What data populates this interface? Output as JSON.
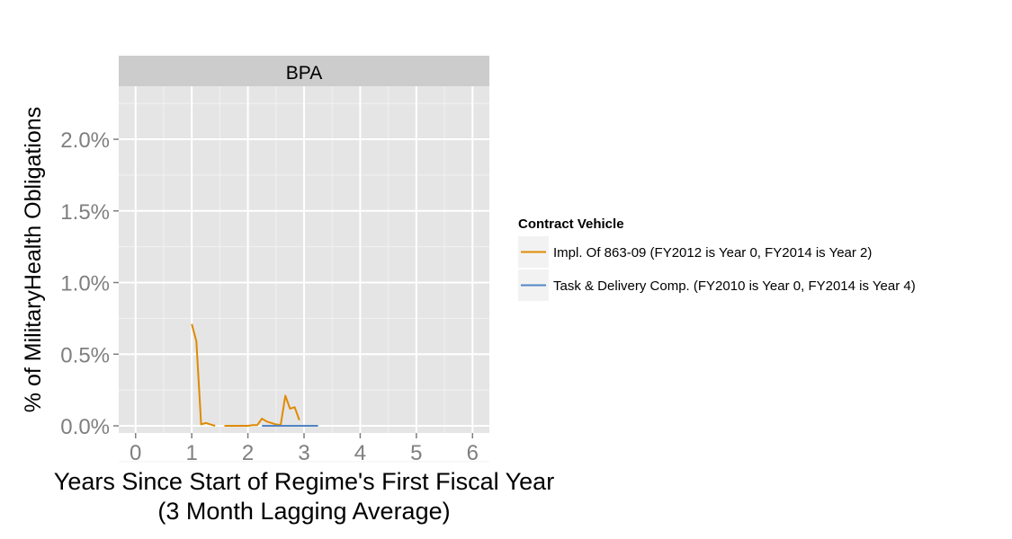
{
  "chart_data": {
    "type": "line",
    "facet_label": "BPA",
    "xlabel": "Years Since Start of Regime's First Fiscal Year",
    "xlabel_sub": "(3 Month Lagging Average)",
    "ylabel": "% of MilitaryHealth Obligations",
    "xlim": [
      -0.3,
      6.3
    ],
    "ylim": [
      -0.05,
      2.37
    ],
    "x_ticks": [
      0,
      1,
      2,
      3,
      4,
      5,
      6
    ],
    "x_tick_labels": [
      "0",
      "1",
      "2",
      "3",
      "4",
      "5",
      "6"
    ],
    "y_ticks": [
      0,
      0.5,
      1.0,
      1.5,
      2.0
    ],
    "y_tick_labels": [
      "0.0%",
      "0.5%",
      "1.0%",
      "1.5%",
      "2.0%"
    ],
    "grid": true,
    "legend": {
      "title": "Contract Vehicle",
      "position": "right"
    },
    "series": [
      {
        "name": "Impl. Of 863-09 (FY2012 is Year 0, FY2014 is Year 2)",
        "color": "#E08A00",
        "segments": [
          [
            [
              1.0,
              0.71
            ],
            [
              1.083,
              0.59
            ],
            [
              1.167,
              0.01
            ],
            [
              1.25,
              0.02
            ],
            [
              1.333,
              0.01
            ],
            [
              1.417,
              0.0
            ]
          ],
          [
            [
              1.583,
              0.0
            ],
            [
              1.667,
              0.0
            ],
            [
              1.75,
              0.0
            ],
            [
              1.833,
              0.0
            ],
            [
              1.917,
              0.0
            ],
            [
              2.0,
              0.0
            ],
            [
              2.083,
              0.005
            ],
            [
              2.167,
              0.005
            ],
            [
              2.25,
              0.05
            ],
            [
              2.333,
              0.03
            ],
            [
              2.417,
              0.02
            ],
            [
              2.5,
              0.01
            ],
            [
              2.583,
              0.005
            ],
            [
              2.667,
              0.21
            ],
            [
              2.75,
              0.12
            ],
            [
              2.833,
              0.13
            ],
            [
              2.917,
              0.04
            ]
          ]
        ]
      },
      {
        "name": "Task & Delivery Comp. (FY2010 is Year 0, FY2014 is Year 4)",
        "color": "#4F86C6",
        "segments": [
          [
            [
              2.25,
              0.0
            ],
            [
              2.333,
              0.0
            ],
            [
              2.417,
              0.0
            ],
            [
              2.5,
              0.0
            ],
            [
              2.583,
              0.0
            ],
            [
              2.667,
              0.0
            ],
            [
              2.75,
              0.0
            ],
            [
              2.833,
              0.0
            ],
            [
              2.917,
              0.0
            ],
            [
              3.0,
              0.0
            ],
            [
              3.083,
              0.0
            ],
            [
              3.167,
              0.0
            ],
            [
              3.25,
              0.0
            ]
          ]
        ]
      }
    ]
  }
}
